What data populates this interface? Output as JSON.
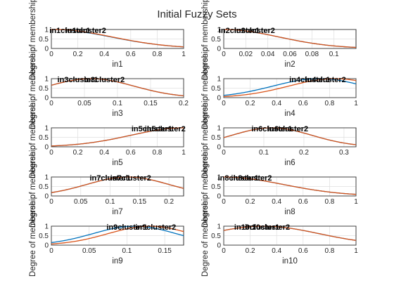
{
  "figure": {
    "title": "Initial Fuzzy Sets",
    "colors": {
      "series1": "#0072bd",
      "series2": "#d95319"
    }
  },
  "chart_data": [
    {
      "type": "line",
      "xlabel": "in1",
      "ylabel": "Degree of membership",
      "xlim": [
        0,
        1
      ],
      "ylim": [
        0,
        1
      ],
      "xticks": [
        "0",
        "0.2",
        "0.4",
        "0.6",
        "0.8",
        "1"
      ],
      "yticks": [
        "0",
        "0.5",
        "1"
      ],
      "series": [
        {
          "label": "in1cluster1",
          "function": "gaussian",
          "center": 0.0,
          "sigma": 0.45,
          "label_x": 0.14
        },
        {
          "label": "in1cluster2",
          "function": "gaussian",
          "center": 0.02,
          "sigma": 0.44,
          "label_x": 0.26
        }
      ]
    },
    {
      "type": "line",
      "xlabel": "in2",
      "ylabel": "Degree of membership",
      "xlim": [
        0,
        0.12
      ],
      "ylim": [
        0,
        1
      ],
      "xticks": [
        "0",
        "0.02",
        "0.04",
        "0.06",
        "0.08",
        "0.1"
      ],
      "yticks": [
        "0",
        "0.5",
        "1"
      ],
      "series": [
        {
          "label": "in2cluster1",
          "function": "gaussian",
          "center": 0.0,
          "sigma": 0.05,
          "label_x": 0.014
        },
        {
          "label": "in2cluster2",
          "function": "gaussian",
          "center": 0.0,
          "sigma": 0.05,
          "label_x": 0.028
        }
      ]
    },
    {
      "type": "line",
      "xlabel": "in3",
      "ylabel": "Degree of membership",
      "xlim": [
        0,
        0.2
      ],
      "ylim": [
        0,
        1
      ],
      "xticks": [
        "0",
        "0.05",
        "0.1",
        "0.15",
        "0.2"
      ],
      "yticks": [
        "0",
        "0.5",
        "1"
      ],
      "series": [
        {
          "label": "in3cluster1",
          "function": "gaussian",
          "center": 0.06,
          "sigma": 0.065,
          "label_x": 0.04
        },
        {
          "label": "in3cluster2",
          "function": "gaussian",
          "center": 0.06,
          "sigma": 0.065,
          "label_x": 0.08
        }
      ]
    },
    {
      "type": "line",
      "xlabel": "in4",
      "ylabel": "Degree of membership",
      "xlim": [
        0,
        1
      ],
      "ylim": [
        0,
        1
      ],
      "xticks": [
        "0",
        "0.2",
        "0.4",
        "0.6",
        "0.8",
        "1"
      ],
      "yticks": [
        "0",
        "0.5",
        "1"
      ],
      "series": [
        {
          "label": "in4cluster1",
          "function": "gaussian",
          "center": 0.72,
          "sigma": 0.35,
          "label_x": 0.65
        },
        {
          "label": "in4cluster2",
          "function": "gaussian",
          "center": 0.84,
          "sigma": 0.35,
          "label_x": 0.77
        }
      ]
    },
    {
      "type": "line",
      "xlabel": "in5",
      "ylabel": "Degree of membership",
      "xlim": [
        0,
        1
      ],
      "ylim": [
        0,
        1
      ],
      "xticks": [
        "0",
        "0.2",
        "0.4",
        "0.6",
        "0.8",
        "1"
      ],
      "yticks": [
        "0",
        "0.5",
        "1"
      ],
      "series": [
        {
          "label": "in5cluster1",
          "function": "gaussian",
          "center": 1.0,
          "sigma": 0.4,
          "label_x": 0.76
        },
        {
          "label": "in5cluster2",
          "function": "gaussian",
          "center": 1.0,
          "sigma": 0.4,
          "label_x": 0.86
        }
      ]
    },
    {
      "type": "line",
      "xlabel": "in6",
      "ylabel": "Degree of membership",
      "xlim": [
        0,
        0.33
      ],
      "ylim": [
        0,
        1
      ],
      "xticks": [
        "0",
        "0.1",
        "0.2",
        "0.3"
      ],
      "yticks": [
        "0",
        "0.5",
        "1"
      ],
      "series": [
        {
          "label": "in6cluster1",
          "function": "gaussian",
          "center": 0.12,
          "sigma": 0.1,
          "label_x": 0.12
        },
        {
          "label": "in6cluster2",
          "function": "gaussian",
          "center": 0.12,
          "sigma": 0.1,
          "label_x": 0.16
        }
      ]
    },
    {
      "type": "line",
      "xlabel": "in7",
      "ylabel": "Degree of membership",
      "xlim": [
        0,
        0.225
      ],
      "ylim": [
        0,
        1
      ],
      "xticks": [
        "0",
        "0.05",
        "0.1",
        "0.15",
        "0.2"
      ],
      "yticks": [
        "0",
        "0.5",
        "1"
      ],
      "series": [
        {
          "label": "in7cluster1",
          "function": "gaussian",
          "center": 0.13,
          "sigma": 0.07,
          "label_x": 0.1
        },
        {
          "label": "in7cluster2",
          "function": "gaussian",
          "center": 0.13,
          "sigma": 0.07,
          "label_x": 0.135
        }
      ]
    },
    {
      "type": "line",
      "xlabel": "in8",
      "ylabel": "Degree of membership",
      "xlim": [
        0,
        1
      ],
      "ylim": [
        0,
        1
      ],
      "xticks": [
        "0",
        "0.2",
        "0.4",
        "0.6",
        "0.8",
        "1"
      ],
      "yticks": [
        "0",
        "0.5",
        "1"
      ],
      "series": [
        {
          "label": "in8cluster1",
          "function": "gaussian",
          "center": 0.0,
          "sigma": 0.45,
          "label_x": 0.11
        },
        {
          "label": "in8cluster2",
          "function": "gaussian",
          "center": 0.0,
          "sigma": 0.45,
          "label_x": 0.21
        }
      ]
    },
    {
      "type": "line",
      "xlabel": "in9",
      "ylabel": "Degree of membership",
      "xlim": [
        0,
        0.175
      ],
      "ylim": [
        0,
        1
      ],
      "xticks": [
        "0",
        "0.05",
        "0.1",
        "0.15"
      ],
      "yticks": [
        "0",
        "0.5",
        "1"
      ],
      "series": [
        {
          "label": "in9cluster1",
          "function": "gaussian",
          "center": 0.11,
          "sigma": 0.055,
          "label_x": 0.1
        },
        {
          "label": "in9cluster2",
          "function": "gaussian",
          "center": 0.13,
          "sigma": 0.055,
          "label_x": 0.138
        }
      ]
    },
    {
      "type": "line",
      "xlabel": "in10",
      "ylabel": "Degree of membership",
      "xlim": [
        0,
        1
      ],
      "ylim": [
        0,
        1
      ],
      "xticks": [
        "0",
        "0.2",
        "0.4",
        "0.6",
        "0.8",
        "1"
      ],
      "yticks": [
        "0",
        "0.5",
        "1"
      ],
      "series": [
        {
          "label": "in10cluster1",
          "function": "gaussian",
          "center": 0.3,
          "sigma": 0.42,
          "label_x": 0.25
        },
        {
          "label": "in10cluster2",
          "function": "gaussian",
          "center": 0.3,
          "sigma": 0.42,
          "label_x": 0.33
        }
      ]
    }
  ]
}
